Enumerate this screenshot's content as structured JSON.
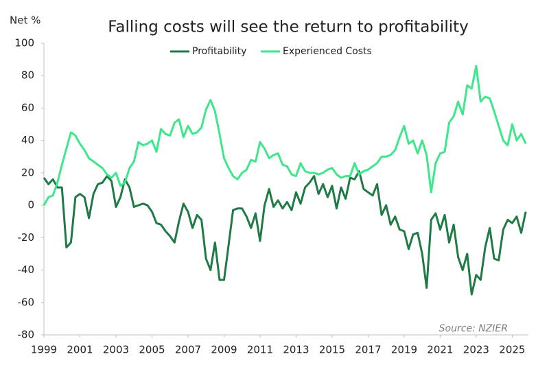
{
  "chart_data": {
    "type": "line",
    "title": "Falling costs will see the return to profitability",
    "y_label": "Net %",
    "annotation": "Source: NZIER",
    "x": [
      1999,
      1999.25,
      1999.5,
      1999.75,
      2000,
      2000.25,
      2000.5,
      2000.75,
      2001,
      2001.25,
      2001.5,
      2001.75,
      2002,
      2002.25,
      2002.5,
      2002.75,
      2003,
      2003.25,
      2003.5,
      2003.75,
      2004,
      2004.25,
      2004.5,
      2004.75,
      2005,
      2005.25,
      2005.5,
      2005.75,
      2006,
      2006.25,
      2006.5,
      2006.75,
      2007,
      2007.25,
      2007.5,
      2007.75,
      2008,
      2008.25,
      2008.5,
      2008.75,
      2009,
      2009.25,
      2009.5,
      2009.75,
      2010,
      2010.25,
      2010.5,
      2010.75,
      2011,
      2011.25,
      2011.5,
      2011.75,
      2012,
      2012.25,
      2012.5,
      2012.75,
      2013,
      2013.25,
      2013.5,
      2013.75,
      2014,
      2014.25,
      2014.5,
      2014.75,
      2015,
      2015.25,
      2015.5,
      2015.75,
      2016,
      2016.25,
      2016.5,
      2016.75,
      2017,
      2017.25,
      2017.5,
      2017.75,
      2018,
      2018.25,
      2018.5,
      2018.75,
      2019,
      2019.25,
      2019.5,
      2019.75,
      2020,
      2020.25,
      2020.5,
      2020.75,
      2021,
      2021.25,
      2021.5,
      2021.75,
      2022,
      2022.25,
      2022.5,
      2022.75,
      2023,
      2023.25,
      2023.5,
      2023.75,
      2024,
      2024.25,
      2024.5,
      2024.75,
      2025,
      2025.25,
      2025.5,
      2025.75
    ],
    "series": [
      {
        "name": "Profitability",
        "color": "#1f7a45",
        "values": [
          17,
          13,
          16,
          11,
          11,
          -26,
          -23,
          5,
          7,
          5,
          -8,
          7,
          13,
          14,
          18,
          15,
          -1,
          5,
          16,
          11,
          -1,
          0,
          1,
          0,
          -4,
          -11,
          -12,
          -16,
          -19,
          -23,
          -10,
          1,
          -4,
          -14,
          -6,
          -9,
          -33,
          -40,
          -23,
          -46,
          -46,
          -25,
          -3,
          -2,
          -2,
          -7,
          -14,
          -5,
          -22,
          0,
          10,
          -1,
          3,
          -2,
          2,
          -3,
          8,
          1,
          11,
          14,
          18,
          7,
          13,
          5,
          12,
          -2,
          11,
          4,
          17,
          16,
          21,
          10,
          8,
          6,
          13,
          -6,
          0,
          -12,
          -7,
          -15,
          -16,
          -27,
          -18,
          -17,
          -30,
          -51,
          -9,
          -5,
          -15,
          -6,
          -23,
          -12,
          -32,
          -40,
          -30,
          -55,
          -43,
          -46,
          -26,
          -14,
          -33,
          -34,
          -15,
          -9,
          -11,
          -7,
          -17,
          -4
        ]
      },
      {
        "name": "Experienced Costs",
        "color": "#3ee68c",
        "values": [
          0,
          5,
          6,
          14,
          25,
          35,
          45,
          43,
          38,
          34,
          29,
          27,
          25,
          23,
          19,
          17,
          20,
          12,
          14,
          23,
          27,
          39,
          37,
          38,
          40,
          33,
          47,
          44,
          43,
          51,
          53,
          42,
          49,
          44,
          45,
          48,
          59,
          65,
          58,
          44,
          29,
          23,
          18,
          16,
          20,
          22,
          28,
          27,
          39,
          35,
          29,
          31,
          32,
          25,
          24,
          19,
          18,
          26,
          21,
          20,
          20,
          19,
          20,
          22,
          23,
          19,
          17,
          18,
          18,
          26,
          19,
          21,
          22,
          24,
          26,
          30,
          30,
          31,
          34,
          42,
          49,
          38,
          40,
          32,
          40,
          31,
          8,
          26,
          32,
          33,
          51,
          55,
          64,
          56,
          74,
          72,
          86,
          64,
          67,
          66,
          58,
          49,
          40,
          37,
          50,
          40,
          44,
          38
        ]
      }
    ],
    "xlim": [
      1999,
      2025.9
    ],
    "xticks": [
      1999,
      2001,
      2003,
      2005,
      2007,
      2009,
      2011,
      2013,
      2015,
      2017,
      2019,
      2021,
      2023,
      2025
    ],
    "ylim": [
      -80,
      100
    ],
    "yticks": [
      -80,
      -60,
      -40,
      -20,
      0,
      20,
      40,
      60,
      80,
      100
    ]
  }
}
